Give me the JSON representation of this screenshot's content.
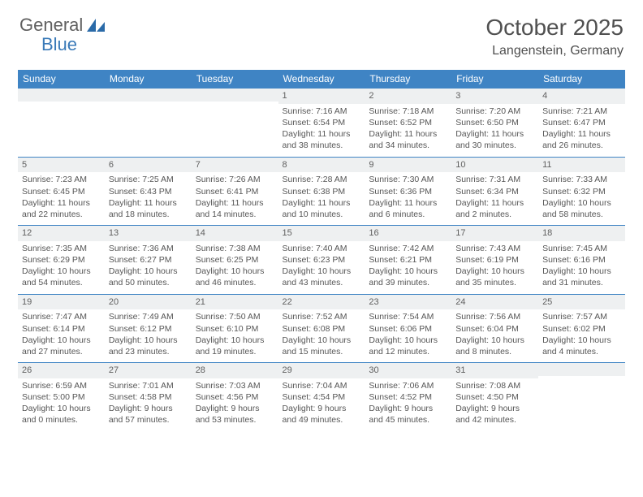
{
  "brand": {
    "name1": "General",
    "name2": "Blue",
    "icon_color": "#2a6aa8"
  },
  "title": "October 2025",
  "location": "Langenstein, Germany",
  "colors": {
    "header_bg": "#3f84c4",
    "daynum_bg": "#eef0f1",
    "border": "#3f84c4",
    "text": "#565656"
  },
  "dow": [
    "Sunday",
    "Monday",
    "Tuesday",
    "Wednesday",
    "Thursday",
    "Friday",
    "Saturday"
  ],
  "weeks": [
    [
      {
        "n": "",
        "sr": "",
        "ss": "",
        "dl1": "",
        "dl2": ""
      },
      {
        "n": "",
        "sr": "",
        "ss": "",
        "dl1": "",
        "dl2": ""
      },
      {
        "n": "",
        "sr": "",
        "ss": "",
        "dl1": "",
        "dl2": ""
      },
      {
        "n": "1",
        "sr": "Sunrise: 7:16 AM",
        "ss": "Sunset: 6:54 PM",
        "dl1": "Daylight: 11 hours",
        "dl2": "and 38 minutes."
      },
      {
        "n": "2",
        "sr": "Sunrise: 7:18 AM",
        "ss": "Sunset: 6:52 PM",
        "dl1": "Daylight: 11 hours",
        "dl2": "and 34 minutes."
      },
      {
        "n": "3",
        "sr": "Sunrise: 7:20 AM",
        "ss": "Sunset: 6:50 PM",
        "dl1": "Daylight: 11 hours",
        "dl2": "and 30 minutes."
      },
      {
        "n": "4",
        "sr": "Sunrise: 7:21 AM",
        "ss": "Sunset: 6:47 PM",
        "dl1": "Daylight: 11 hours",
        "dl2": "and 26 minutes."
      }
    ],
    [
      {
        "n": "5",
        "sr": "Sunrise: 7:23 AM",
        "ss": "Sunset: 6:45 PM",
        "dl1": "Daylight: 11 hours",
        "dl2": "and 22 minutes."
      },
      {
        "n": "6",
        "sr": "Sunrise: 7:25 AM",
        "ss": "Sunset: 6:43 PM",
        "dl1": "Daylight: 11 hours",
        "dl2": "and 18 minutes."
      },
      {
        "n": "7",
        "sr": "Sunrise: 7:26 AM",
        "ss": "Sunset: 6:41 PM",
        "dl1": "Daylight: 11 hours",
        "dl2": "and 14 minutes."
      },
      {
        "n": "8",
        "sr": "Sunrise: 7:28 AM",
        "ss": "Sunset: 6:38 PM",
        "dl1": "Daylight: 11 hours",
        "dl2": "and 10 minutes."
      },
      {
        "n": "9",
        "sr": "Sunrise: 7:30 AM",
        "ss": "Sunset: 6:36 PM",
        "dl1": "Daylight: 11 hours",
        "dl2": "and 6 minutes."
      },
      {
        "n": "10",
        "sr": "Sunrise: 7:31 AM",
        "ss": "Sunset: 6:34 PM",
        "dl1": "Daylight: 11 hours",
        "dl2": "and 2 minutes."
      },
      {
        "n": "11",
        "sr": "Sunrise: 7:33 AM",
        "ss": "Sunset: 6:32 PM",
        "dl1": "Daylight: 10 hours",
        "dl2": "and 58 minutes."
      }
    ],
    [
      {
        "n": "12",
        "sr": "Sunrise: 7:35 AM",
        "ss": "Sunset: 6:29 PM",
        "dl1": "Daylight: 10 hours",
        "dl2": "and 54 minutes."
      },
      {
        "n": "13",
        "sr": "Sunrise: 7:36 AM",
        "ss": "Sunset: 6:27 PM",
        "dl1": "Daylight: 10 hours",
        "dl2": "and 50 minutes."
      },
      {
        "n": "14",
        "sr": "Sunrise: 7:38 AM",
        "ss": "Sunset: 6:25 PM",
        "dl1": "Daylight: 10 hours",
        "dl2": "and 46 minutes."
      },
      {
        "n": "15",
        "sr": "Sunrise: 7:40 AM",
        "ss": "Sunset: 6:23 PM",
        "dl1": "Daylight: 10 hours",
        "dl2": "and 43 minutes."
      },
      {
        "n": "16",
        "sr": "Sunrise: 7:42 AM",
        "ss": "Sunset: 6:21 PM",
        "dl1": "Daylight: 10 hours",
        "dl2": "and 39 minutes."
      },
      {
        "n": "17",
        "sr": "Sunrise: 7:43 AM",
        "ss": "Sunset: 6:19 PM",
        "dl1": "Daylight: 10 hours",
        "dl2": "and 35 minutes."
      },
      {
        "n": "18",
        "sr": "Sunrise: 7:45 AM",
        "ss": "Sunset: 6:16 PM",
        "dl1": "Daylight: 10 hours",
        "dl2": "and 31 minutes."
      }
    ],
    [
      {
        "n": "19",
        "sr": "Sunrise: 7:47 AM",
        "ss": "Sunset: 6:14 PM",
        "dl1": "Daylight: 10 hours",
        "dl2": "and 27 minutes."
      },
      {
        "n": "20",
        "sr": "Sunrise: 7:49 AM",
        "ss": "Sunset: 6:12 PM",
        "dl1": "Daylight: 10 hours",
        "dl2": "and 23 minutes."
      },
      {
        "n": "21",
        "sr": "Sunrise: 7:50 AM",
        "ss": "Sunset: 6:10 PM",
        "dl1": "Daylight: 10 hours",
        "dl2": "and 19 minutes."
      },
      {
        "n": "22",
        "sr": "Sunrise: 7:52 AM",
        "ss": "Sunset: 6:08 PM",
        "dl1": "Daylight: 10 hours",
        "dl2": "and 15 minutes."
      },
      {
        "n": "23",
        "sr": "Sunrise: 7:54 AM",
        "ss": "Sunset: 6:06 PM",
        "dl1": "Daylight: 10 hours",
        "dl2": "and 12 minutes."
      },
      {
        "n": "24",
        "sr": "Sunrise: 7:56 AM",
        "ss": "Sunset: 6:04 PM",
        "dl1": "Daylight: 10 hours",
        "dl2": "and 8 minutes."
      },
      {
        "n": "25",
        "sr": "Sunrise: 7:57 AM",
        "ss": "Sunset: 6:02 PM",
        "dl1": "Daylight: 10 hours",
        "dl2": "and 4 minutes."
      }
    ],
    [
      {
        "n": "26",
        "sr": "Sunrise: 6:59 AM",
        "ss": "Sunset: 5:00 PM",
        "dl1": "Daylight: 10 hours",
        "dl2": "and 0 minutes."
      },
      {
        "n": "27",
        "sr": "Sunrise: 7:01 AM",
        "ss": "Sunset: 4:58 PM",
        "dl1": "Daylight: 9 hours",
        "dl2": "and 57 minutes."
      },
      {
        "n": "28",
        "sr": "Sunrise: 7:03 AM",
        "ss": "Sunset: 4:56 PM",
        "dl1": "Daylight: 9 hours",
        "dl2": "and 53 minutes."
      },
      {
        "n": "29",
        "sr": "Sunrise: 7:04 AM",
        "ss": "Sunset: 4:54 PM",
        "dl1": "Daylight: 9 hours",
        "dl2": "and 49 minutes."
      },
      {
        "n": "30",
        "sr": "Sunrise: 7:06 AM",
        "ss": "Sunset: 4:52 PM",
        "dl1": "Daylight: 9 hours",
        "dl2": "and 45 minutes."
      },
      {
        "n": "31",
        "sr": "Sunrise: 7:08 AM",
        "ss": "Sunset: 4:50 PM",
        "dl1": "Daylight: 9 hours",
        "dl2": "and 42 minutes."
      },
      {
        "n": "",
        "sr": "",
        "ss": "",
        "dl1": "",
        "dl2": ""
      }
    ]
  ]
}
